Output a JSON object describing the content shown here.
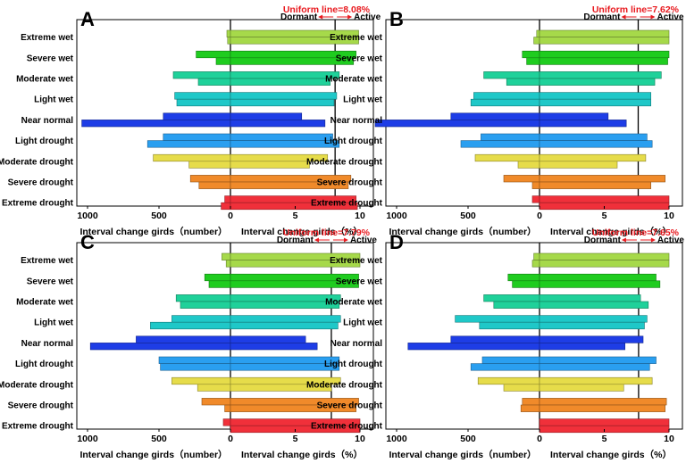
{
  "figure": {
    "xlabel_left": "Interval change girds（number）",
    "xlabel_right": "Interval change girds（%）",
    "dormant_label": "Dormant",
    "active_label": "Active",
    "categories": [
      "Extreme wet",
      "Severe wet",
      "Moderate wet",
      "Light wet",
      "Near normal",
      "Light drought",
      "Moderate drought",
      "Severe drought",
      "Extreme drought"
    ],
    "category_colors": [
      "#a6d94a",
      "#1fcc1f",
      "#1fd19a",
      "#1fc8c8",
      "#1e3de6",
      "#2a9ff0",
      "#e6dc4a",
      "#f08a2a",
      "#f0303a"
    ]
  },
  "chart_data": [
    {
      "type": "bar",
      "panel": "A",
      "uniform_label": "Uniform line=8.08%",
      "uniform_line": 8.08,
      "left_axis": {
        "label": "Interval change girds（number）",
        "ticks": [
          1000,
          500,
          0
        ],
        "range": [
          1100,
          0
        ]
      },
      "right_axis": {
        "label": "Interval change girds（%）",
        "ticks": [
          0,
          5,
          10
        ],
        "range": [
          0,
          10
        ]
      },
      "categories": [
        "Extreme wet",
        "Severe wet",
        "Moderate wet",
        "Light wet",
        "Near normal",
        "Light drought",
        "Moderate drought",
        "Severe drought",
        "Extreme drought"
      ],
      "series": [
        {
          "name": "Dormant count",
          "values": [
            25,
            240,
            400,
            390,
            470,
            470,
            540,
            280,
            40
          ]
        },
        {
          "name": "Active count",
          "values": [
            20,
            100,
            225,
            375,
            1040,
            580,
            290,
            220,
            65
          ]
        },
        {
          "name": "Dormant %",
          "values": [
            9.9,
            9.7,
            8.4,
            8.2,
            5.5,
            7.9,
            7.5,
            9.3,
            9.7
          ]
        },
        {
          "name": "Active %",
          "values": [
            9.9,
            9.5,
            7.7,
            8.0,
            7.3,
            8.4,
            6.1,
            9.1,
            9.8
          ]
        }
      ]
    },
    {
      "type": "bar",
      "panel": "B",
      "uniform_label": "Uniform line=7.62%",
      "uniform_line": 7.62,
      "left_axis": {
        "label": "Interval change girds（number）",
        "ticks": [
          1000,
          500,
          0
        ],
        "range": [
          1100,
          0
        ]
      },
      "right_axis": {
        "label": "Interval change girds（%）",
        "ticks": [
          0,
          5,
          10
        ],
        "range": [
          0,
          10
        ]
      },
      "categories": [
        "Extreme wet",
        "Severe wet",
        "Moderate wet",
        "Light wet",
        "Near normal",
        "Light drought",
        "Moderate drought",
        "Severe drought",
        "Extreme drought"
      ],
      "series": [
        {
          "name": "Dormant count",
          "values": [
            20,
            120,
            390,
            460,
            620,
            410,
            450,
            250,
            50
          ]
        },
        {
          "name": "Active count",
          "values": [
            40,
            90,
            230,
            480,
            1150,
            550,
            150,
            50,
            0
          ]
        },
        {
          "name": "Dormant %",
          "values": [
            10.0,
            10.0,
            9.4,
            8.6,
            5.3,
            8.3,
            8.2,
            9.7,
            10.0
          ]
        },
        {
          "name": "Active %",
          "values": [
            10.0,
            9.9,
            8.9,
            8.6,
            6.7,
            8.7,
            6.0,
            8.6,
            10.0
          ]
        }
      ]
    },
    {
      "type": "bar",
      "panel": "C",
      "uniform_label": "Uniform line=7.79%",
      "uniform_line": 7.79,
      "left_axis": {
        "label": "Interval change girds（number）",
        "ticks": [
          1000,
          500,
          0
        ],
        "range": [
          1100,
          0
        ]
      },
      "right_axis": {
        "label": "Interval change girds（%）",
        "ticks": [
          0,
          5,
          10
        ],
        "range": [
          0,
          10
        ]
      },
      "categories": [
        "Extreme wet",
        "Severe wet",
        "Moderate wet",
        "Light wet",
        "Near normal",
        "Light drought",
        "Moderate drought",
        "Severe drought",
        "Extreme drought"
      ],
      "series": [
        {
          "name": "Dormant count",
          "values": [
            60,
            180,
            380,
            410,
            660,
            500,
            410,
            200,
            50
          ]
        },
        {
          "name": "Active count",
          "values": [
            30,
            150,
            350,
            560,
            980,
            490,
            230,
            40,
            0
          ]
        },
        {
          "name": "Dormant %",
          "values": [
            10.0,
            9.9,
            8.5,
            8.5,
            5.8,
            8.4,
            8.5,
            9.9,
            10.0
          ]
        },
        {
          "name": "Active %",
          "values": [
            10.0,
            9.9,
            8.4,
            8.3,
            6.7,
            8.4,
            7.8,
            9.7,
            10.0
          ]
        }
      ]
    },
    {
      "type": "bar",
      "panel": "D",
      "uniform_label": "Uniform line=7.65%",
      "uniform_line": 7.65,
      "left_axis": {
        "label": "Interval change girds（number）",
        "ticks": [
          1000,
          500,
          0
        ],
        "range": [
          1100,
          0
        ]
      },
      "right_axis": {
        "label": "Interval change girds（%）",
        "ticks": [
          0,
          5,
          10
        ],
        "range": [
          0,
          10
        ]
      },
      "categories": [
        "Extreme wet",
        "Severe wet",
        "Moderate wet",
        "Light wet",
        "Near normal",
        "Light drought",
        "Moderate drought",
        "Severe drought",
        "Extreme drought"
      ],
      "series": [
        {
          "name": "Dormant count",
          "values": [
            40,
            220,
            390,
            590,
            620,
            400,
            430,
            120,
            0
          ]
        },
        {
          "name": "Active count",
          "values": [
            50,
            190,
            320,
            420,
            920,
            480,
            250,
            130,
            0
          ]
        },
        {
          "name": "Dormant %",
          "values": [
            10.0,
            9.0,
            7.8,
            8.3,
            8.0,
            9.0,
            8.7,
            9.8,
            10.0
          ]
        },
        {
          "name": "Active %",
          "values": [
            10.0,
            9.3,
            8.4,
            8.1,
            6.6,
            8.5,
            6.5,
            9.7,
            10.0
          ]
        }
      ]
    }
  ]
}
